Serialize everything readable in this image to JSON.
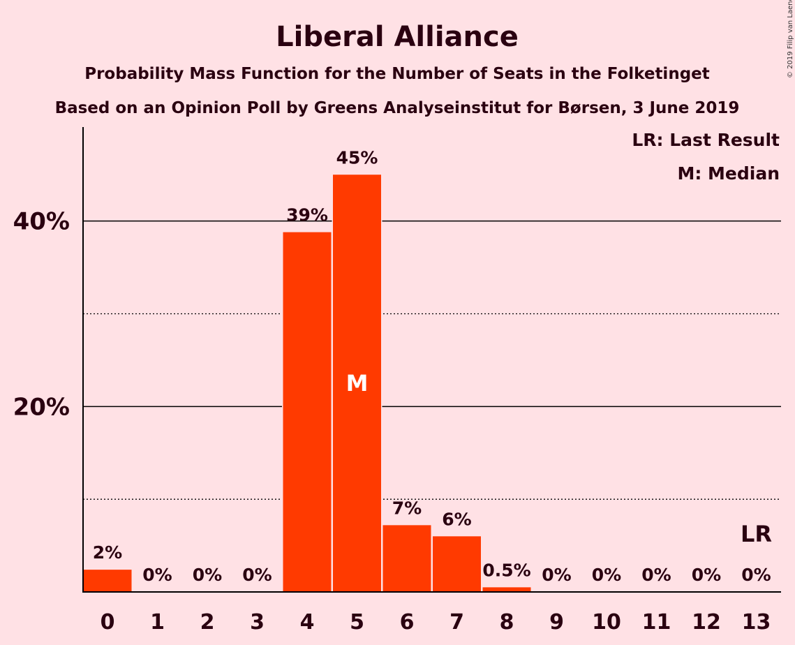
{
  "chart_data": {
    "type": "bar",
    "title": "Liberal Alliance",
    "subtitle_1": "Probability Mass Function for the Number of Seats in the Folketinget",
    "subtitle_2": "Based on an Opinion Poll by Greens Analyseinstitut for Børsen, 3 June 2019",
    "copyright": "© 2019 Filip van Laenen",
    "categories": [
      "0",
      "1",
      "2",
      "3",
      "4",
      "5",
      "6",
      "7",
      "8",
      "9",
      "10",
      "11",
      "12",
      "13"
    ],
    "values": [
      2.4,
      0,
      0,
      0,
      38.8,
      45,
      7.2,
      6,
      0.5,
      0,
      0,
      0,
      0,
      0
    ],
    "value_labels": [
      "2%",
      "0%",
      "0%",
      "0%",
      "39%",
      "45%",
      "7%",
      "6%",
      "0.5%",
      "0%",
      "0%",
      "0%",
      "0%",
      "0%"
    ],
    "ylim": [
      0,
      49
    ],
    "yticks": [
      {
        "value": 20,
        "label": "20%"
      },
      {
        "value": 40,
        "label": "40%"
      }
    ],
    "minor_gridlines": [
      10,
      30
    ],
    "legend": {
      "placement": "top-right",
      "lines": [
        "LR: Last Result",
        "M: Median"
      ]
    },
    "median": {
      "category": "5",
      "label": "M"
    },
    "last_result": {
      "category": "13",
      "label": "LR"
    },
    "colors": {
      "bar": "#ff3a00",
      "background": "#ffe1e5",
      "text": "#2a0010"
    }
  }
}
